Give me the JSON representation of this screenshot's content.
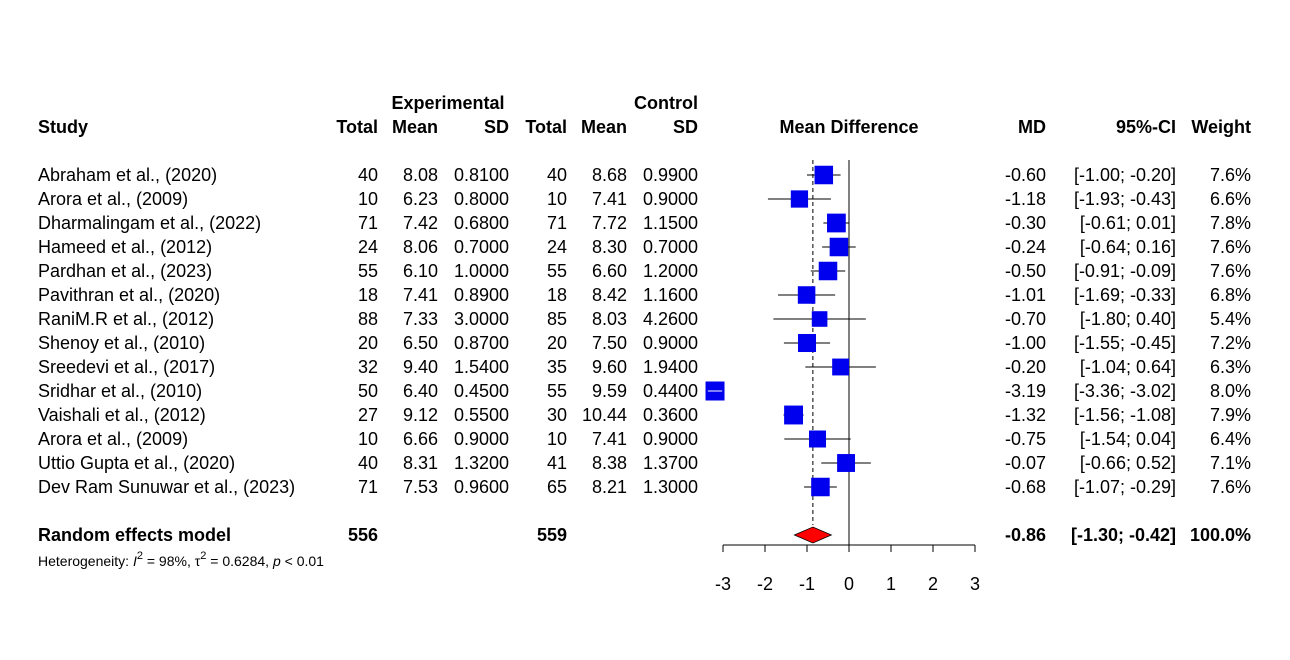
{
  "headers": {
    "experimental": "Experimental",
    "control": "Control",
    "study": "Study",
    "total": "Total",
    "mean": "Mean",
    "sd": "SD",
    "mean_difference": "Mean Difference",
    "md": "MD",
    "ci": "95%-CI",
    "weight": "Weight"
  },
  "summary": {
    "label": "Random effects model",
    "exp_total": "556",
    "ctrl_total": "559",
    "md": "-0.86",
    "ci": "[-1.30; -0.42]",
    "weight": "100.0%"
  },
  "heterogeneity": {
    "prefix": "Heterogeneity: ",
    "i2_symbol": "I",
    "i2_value": " = 98%, ",
    "tau_symbol": "τ",
    "tau_value": " = 0.6284, ",
    "p_symbol": "p",
    "p_value": " < 0.01"
  },
  "chart_data": {
    "type": "forest",
    "xlim": [
      -3,
      3
    ],
    "xticks": [
      "-3",
      "-2",
      "-1",
      "0",
      "1",
      "2",
      "3"
    ],
    "pooled": {
      "md": -0.86,
      "lower": -1.3,
      "upper": -0.42
    },
    "colors": {
      "square": "#0000ee",
      "diamond": "#ff0000"
    },
    "studies": [
      {
        "name": "Abraham et al., (2020)",
        "exp_total": "40",
        "exp_mean": "8.08",
        "exp_sd": "0.8100",
        "ctrl_total": "40",
        "ctrl_mean": "8.68",
        "ctrl_sd": "0.9900",
        "md": -0.6,
        "lower": -1.0,
        "upper": -0.2,
        "md_text": "-0.60",
        "ci_text": "[-1.00; -0.20]",
        "weight": "7.6%"
      },
      {
        "name": "Arora et al., (2009)",
        "exp_total": "10",
        "exp_mean": "6.23",
        "exp_sd": "0.8000",
        "ctrl_total": "10",
        "ctrl_mean": "7.41",
        "ctrl_sd": "0.9000",
        "md": -1.18,
        "lower": -1.93,
        "upper": -0.43,
        "md_text": "-1.18",
        "ci_text": "[-1.93; -0.43]",
        "weight": "6.6%"
      },
      {
        "name": "Dharmalingam et al., (2022)",
        "exp_total": "71",
        "exp_mean": "7.42",
        "exp_sd": "0.6800",
        "ctrl_total": "71",
        "ctrl_mean": "7.72",
        "ctrl_sd": "1.1500",
        "md": -0.3,
        "lower": -0.61,
        "upper": 0.01,
        "md_text": "-0.30",
        "ci_text": "[-0.61;  0.01]",
        "weight": "7.8%"
      },
      {
        "name": "Hameed et al., (2012)",
        "exp_total": "24",
        "exp_mean": "8.06",
        "exp_sd": "0.7000",
        "ctrl_total": "24",
        "ctrl_mean": "8.30",
        "ctrl_sd": "0.7000",
        "md": -0.24,
        "lower": -0.64,
        "upper": 0.16,
        "md_text": "-0.24",
        "ci_text": "[-0.64;  0.16]",
        "weight": "7.6%"
      },
      {
        "name": "Pardhan et al., (2023)",
        "exp_total": "55",
        "exp_mean": "6.10",
        "exp_sd": "1.0000",
        "ctrl_total": "55",
        "ctrl_mean": "6.60",
        "ctrl_sd": "1.2000",
        "md": -0.5,
        "lower": -0.91,
        "upper": -0.09,
        "md_text": "-0.50",
        "ci_text": "[-0.91; -0.09]",
        "weight": "7.6%"
      },
      {
        "name": "Pavithran et al., (2020)",
        "exp_total": "18",
        "exp_mean": "7.41",
        "exp_sd": "0.8900",
        "ctrl_total": "18",
        "ctrl_mean": "8.42",
        "ctrl_sd": "1.1600",
        "md": -1.01,
        "lower": -1.69,
        "upper": -0.33,
        "md_text": "-1.01",
        "ci_text": "[-1.69; -0.33]",
        "weight": "6.8%"
      },
      {
        "name": "RaniM.R et al., (2012)",
        "exp_total": "88",
        "exp_mean": "7.33",
        "exp_sd": "3.0000",
        "ctrl_total": "85",
        "ctrl_mean": "8.03",
        "ctrl_sd": "4.2600",
        "md": -0.7,
        "lower": -1.8,
        "upper": 0.4,
        "md_text": "-0.70",
        "ci_text": "[-1.80;  0.40]",
        "weight": "5.4%"
      },
      {
        "name": "Shenoy et al., (2010)",
        "exp_total": "20",
        "exp_mean": "6.50",
        "exp_sd": "0.8700",
        "ctrl_total": "20",
        "ctrl_mean": "7.50",
        "ctrl_sd": "0.9000",
        "md": -1.0,
        "lower": -1.55,
        "upper": -0.45,
        "md_text": "-1.00",
        "ci_text": "[-1.55; -0.45]",
        "weight": "7.2%"
      },
      {
        "name": "Sreedevi et al., (2017)",
        "exp_total": "32",
        "exp_mean": "9.40",
        "exp_sd": "1.5400",
        "ctrl_total": "35",
        "ctrl_mean": "9.60",
        "ctrl_sd": "1.9400",
        "md": -0.2,
        "lower": -1.04,
        "upper": 0.64,
        "md_text": "-0.20",
        "ci_text": "[-1.04;  0.64]",
        "weight": "6.3%"
      },
      {
        "name": "Sridhar et al., (2010)",
        "exp_total": "50",
        "exp_mean": "6.40",
        "exp_sd": "0.4500",
        "ctrl_total": "55",
        "ctrl_mean": "9.59",
        "ctrl_sd": "0.4400",
        "md": -3.19,
        "lower": -3.36,
        "upper": -3.02,
        "md_text": "-3.19",
        "ci_text": "[-3.36; -3.02]",
        "weight": "8.0%"
      },
      {
        "name": "Vaishali et al., (2012)",
        "exp_total": "27",
        "exp_mean": "9.12",
        "exp_sd": "0.5500",
        "ctrl_total": "30",
        "ctrl_mean": "10.44",
        "ctrl_sd": "0.3600",
        "md": -1.32,
        "lower": -1.56,
        "upper": -1.08,
        "md_text": "-1.32",
        "ci_text": "[-1.56; -1.08]",
        "weight": "7.9%"
      },
      {
        "name": "Arora et al., (2009)",
        "exp_total": "10",
        "exp_mean": "6.66",
        "exp_sd": "0.9000",
        "ctrl_total": "10",
        "ctrl_mean": "7.41",
        "ctrl_sd": "0.9000",
        "md": -0.75,
        "lower": -1.54,
        "upper": 0.04,
        "md_text": "-0.75",
        "ci_text": "[-1.54;  0.04]",
        "weight": "6.4%"
      },
      {
        "name": "Uttio Gupta et al., (2020)",
        "exp_total": "40",
        "exp_mean": "8.31",
        "exp_sd": "1.3200",
        "ctrl_total": "41",
        "ctrl_mean": "8.38",
        "ctrl_sd": "1.3700",
        "md": -0.07,
        "lower": -0.66,
        "upper": 0.52,
        "md_text": "-0.07",
        "ci_text": "[-0.66;  0.52]",
        "weight": "7.1%"
      },
      {
        "name": "Dev Ram Sunuwar et al., (2023)",
        "exp_total": "71",
        "exp_mean": "7.53",
        "exp_sd": "0.9600",
        "ctrl_total": "65",
        "ctrl_mean": "8.21",
        "ctrl_sd": "1.3000",
        "md": -0.68,
        "lower": -1.07,
        "upper": -0.29,
        "md_text": "-0.68",
        "ci_text": "[-1.07; -0.29]",
        "weight": "7.6%"
      }
    ]
  }
}
